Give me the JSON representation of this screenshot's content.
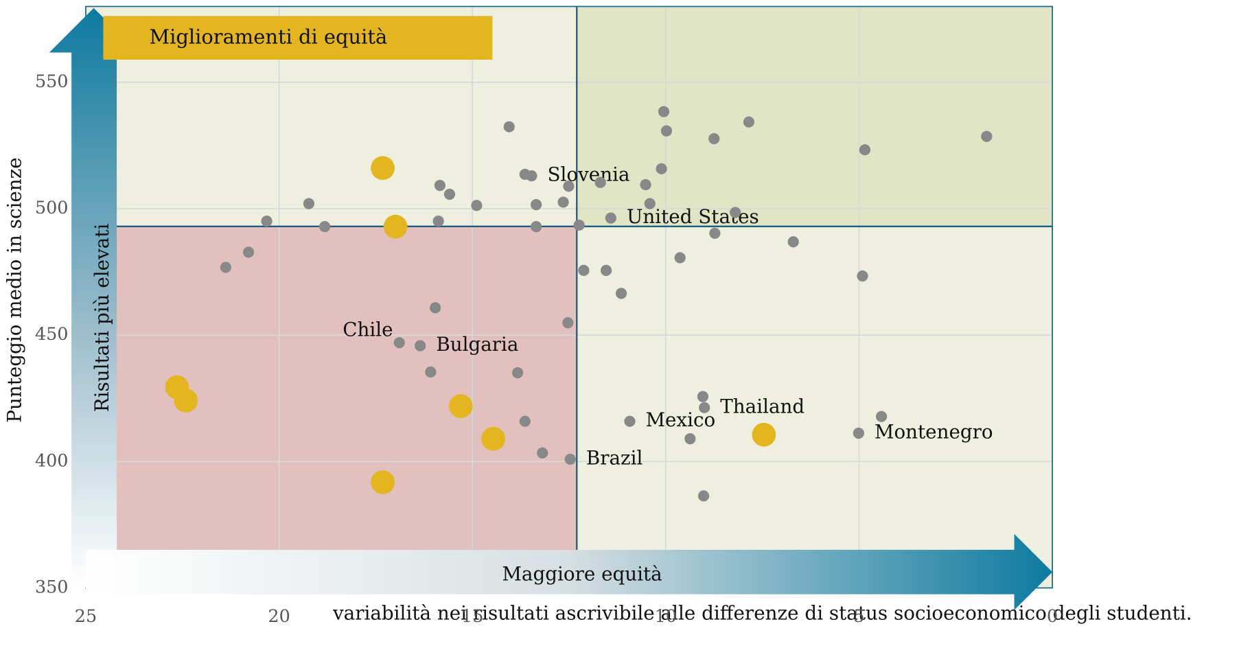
{
  "chart_data": {
    "type": "scatter",
    "title": "Miglioramenti di equità",
    "y_arrow_label": "Risultati più elevati",
    "x_arrow_label": "Maggiore equità",
    "xlabel": "variabilità nei risultati ascrivibile alle differenze di status socioeconomico degli studenti.",
    "ylabel": "Punteggio medio in scienze",
    "xlim": [
      25,
      0
    ],
    "ylim": [
      350,
      580
    ],
    "xticks": [
      25,
      20,
      15,
      10,
      5,
      0
    ],
    "yticks": [
      350,
      400,
      450,
      500,
      550
    ],
    "xref": 12.3,
    "yref": 493,
    "grid": true,
    "series": [
      {
        "color": "#888888",
        "x": [
          21.38,
          20.79,
          20.32,
          19.23,
          18.82,
          15.84,
          15.59,
          15.88,
          14.89,
          14.05,
          13.64,
          13.47,
          13.35,
          13.35,
          12.65,
          12.51,
          12.24,
          11.69,
          12.12,
          11.54,
          11.15,
          11.42,
          10.52,
          10.41,
          10.11,
          10.05,
          9.98,
          9.63,
          8.75,
          7.85,
          8.73,
          8.2,
          6.7,
          4.85,
          4.91,
          1.7,
          15.96,
          16.89,
          16.35,
          16.08,
          13.83,
          12.53,
          13.64,
          13.19,
          12.47,
          10.93,
          9.37,
          9.04,
          9.0,
          9.02,
          5.01,
          4.42
        ],
        "values": [
          476.8,
          482.8,
          495.1,
          502.0,
          492.9,
          509.2,
          505.7,
          495.1,
          501.3,
          532.4,
          513.6,
          513.0,
          501.6,
          492.9,
          502.6,
          508.9,
          493.5,
          510.4,
          475.6,
          475.6,
          466.5,
          496.3,
          509.5,
          502.0,
          515.8,
          538.4,
          530.8,
          480.6,
          527.7,
          534.3,
          490.3,
          498.5,
          486.9,
          523.3,
          473.4,
          528.6,
          460.8,
          447.0,
          445.8,
          435.4,
          435.1,
          454.9,
          415.9,
          403.4,
          400.9,
          415.9,
          409.0,
          425.7,
          421.3,
          386.4,
          411.2,
          417.8
        ],
        "labels": [
          null,
          null,
          null,
          null,
          null,
          null,
          null,
          null,
          null,
          null,
          null,
          "Slovenia",
          null,
          null,
          null,
          null,
          null,
          null,
          null,
          null,
          null,
          "United States",
          null,
          null,
          null,
          null,
          null,
          null,
          null,
          null,
          null,
          null,
          null,
          null,
          null,
          null,
          null,
          "Chile",
          "Bulgaria",
          null,
          null,
          null,
          null,
          null,
          "Brazil",
          "Mexico",
          null,
          null,
          "Thailand",
          null,
          "Montenegro",
          null
        ]
      },
      {
        "color": "#e3b620",
        "x": [
          17.32,
          16.99,
          22.64,
          22.41,
          15.3,
          14.46,
          17.32,
          7.46
        ],
        "values": [
          516.1,
          492.9,
          429.4,
          424.1,
          421.9,
          409.0,
          391.8,
          410.6
        ]
      }
    ]
  }
}
